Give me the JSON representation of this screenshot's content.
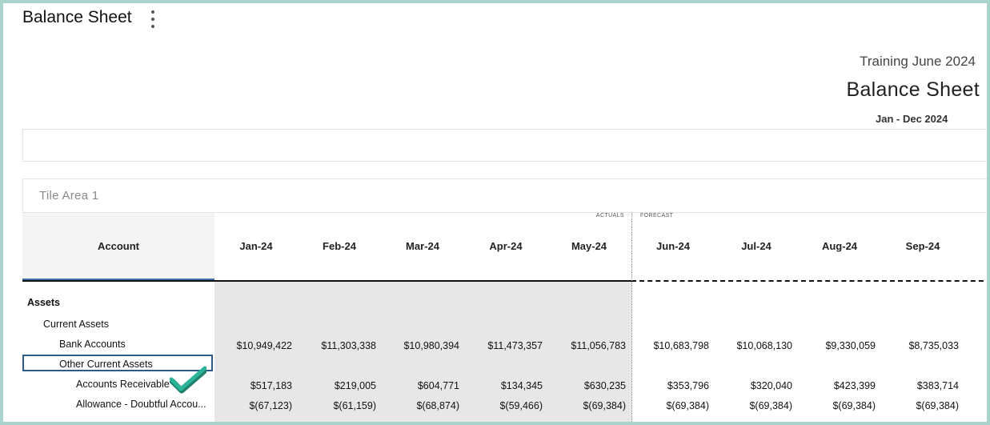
{
  "header": {
    "title": "Balance Sheet"
  },
  "report": {
    "subtitle": "Training June 2024",
    "title": "Balance Sheet",
    "date_range": "Jan - Dec 2024"
  },
  "tile_area": {
    "label": "Tile Area 1"
  },
  "grid": {
    "actuals_label": "ACTUALS",
    "forecast_label": "FORECAST",
    "account_header": "Account",
    "columns": [
      "Jan-24",
      "Feb-24",
      "Mar-24",
      "Apr-24",
      "May-24",
      "Jun-24",
      "Jul-24",
      "Aug-24",
      "Sep-24"
    ],
    "rows": [
      {
        "label": "Assets",
        "values": []
      },
      {
        "label": "Current Assets",
        "values": []
      },
      {
        "label": "Bank Accounts",
        "values": [
          "$10,949,422",
          "$11,303,338",
          "$10,980,394",
          "$11,473,357",
          "$11,056,783",
          "$10,683,798",
          "$10,068,130",
          "$9,330,059",
          "$8,735,033"
        ]
      },
      {
        "label": "Other Current Assets",
        "values": []
      },
      {
        "label": "Accounts Receivable",
        "values": [
          "$517,183",
          "$219,005",
          "$604,771",
          "$134,345",
          "$630,235",
          "$353,796",
          "$320,040",
          "$423,399",
          "$383,714"
        ]
      },
      {
        "label": "Allowance - Doubtful Accou...",
        "values": [
          "$(67,123)",
          "$(61,159)",
          "$(68,874)",
          "$(59,466)",
          "$(69,384)",
          "$(69,384)",
          "$(69,384)",
          "$(69,384)",
          "$(69,384)"
        ]
      }
    ]
  },
  "colors": {
    "frame": "#a9d3cb",
    "selection_border": "#2f5a86",
    "account_underline": "#3a6ea5",
    "actuals_shade": "#e7e7e7",
    "check_mark": "#2bb39a"
  },
  "icons": {
    "menu": "kebab-menu-icon",
    "selection_marker": "check-icon"
  }
}
